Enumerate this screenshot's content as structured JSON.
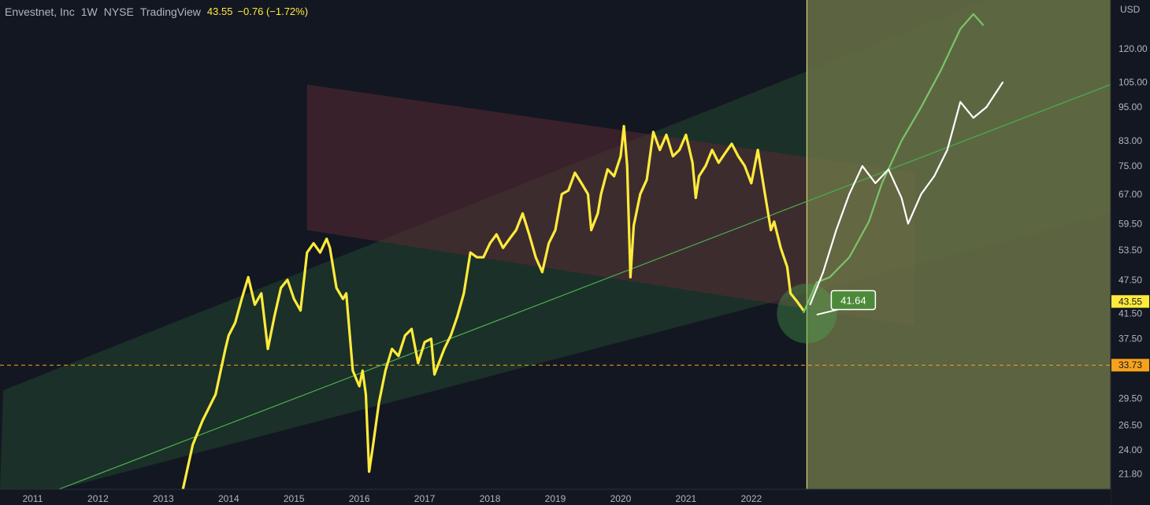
{
  "legend": {
    "symbol": "Envestnet, Inc",
    "interval": "1W",
    "exchange": "NYSE",
    "source": "TradingView",
    "price": "43.55",
    "change": "−0.76 (−1.72%)"
  },
  "colors": {
    "background": "#131722",
    "price_line": "#ffeb3b",
    "projection_green": "#7cc36a",
    "projection_white": "#ffffff",
    "channel_fill": "#1f3a2b",
    "trend_line": "#4caf50",
    "red_zone": "#5a2a33",
    "future_zone": "#6b7447",
    "support_line": "#f7a21b",
    "axis_text": "#b2b5be"
  },
  "chart_data": {
    "type": "line",
    "y_scale": "log",
    "currency": "USD",
    "ylim": [
      20.5,
      146
    ],
    "xlim": [
      "2010-07",
      "2027-07"
    ],
    "x_ticks": [
      "2011",
      "2012",
      "2013",
      "2014",
      "2015",
      "2016",
      "2017",
      "2018",
      "2019",
      "2020",
      "2021",
      "2022"
    ],
    "y_ticks": [
      "120.00",
      "105.00",
      "95.00",
      "83.00",
      "75.00",
      "67.00",
      "59.50",
      "53.50",
      "47.50",
      "41.50",
      "37.50",
      "29.50",
      "26.50",
      "24.00",
      "21.80"
    ],
    "current_price": "43.55",
    "support_level": "33.73",
    "callout": "41.64",
    "series": [
      {
        "values": [
          [
            2013.3,
            20.5
          ],
          [
            2013.45,
            24.5
          ],
          [
            2013.6,
            27
          ],
          [
            2013.8,
            30
          ],
          [
            2013.95,
            36
          ],
          [
            2014.0,
            38
          ],
          [
            2014.1,
            40
          ],
          [
            2014.2,
            44
          ],
          [
            2014.3,
            48
          ],
          [
            2014.4,
            43
          ],
          [
            2014.5,
            45
          ],
          [
            2014.6,
            36
          ],
          [
            2014.7,
            41
          ],
          [
            2014.8,
            46
          ],
          [
            2014.9,
            47.5
          ],
          [
            2015.0,
            44
          ],
          [
            2015.1,
            42
          ],
          [
            2015.2,
            53
          ],
          [
            2015.3,
            55
          ],
          [
            2015.4,
            53
          ],
          [
            2015.5,
            56
          ],
          [
            2015.55,
            54
          ],
          [
            2015.65,
            46
          ],
          [
            2015.75,
            44
          ],
          [
            2015.8,
            45
          ],
          [
            2015.9,
            33
          ],
          [
            2016.0,
            31
          ],
          [
            2016.05,
            33
          ],
          [
            2016.1,
            30
          ],
          [
            2016.15,
            22
          ],
          [
            2016.2,
            24
          ],
          [
            2016.3,
            29
          ],
          [
            2016.4,
            33
          ],
          [
            2016.5,
            36
          ],
          [
            2016.6,
            35
          ],
          [
            2016.7,
            38
          ],
          [
            2016.8,
            39
          ],
          [
            2016.9,
            34
          ],
          [
            2017.0,
            37
          ],
          [
            2017.1,
            37.5
          ],
          [
            2017.15,
            32.5
          ],
          [
            2017.3,
            36
          ],
          [
            2017.4,
            38
          ],
          [
            2017.5,
            41
          ],
          [
            2017.6,
            45
          ],
          [
            2017.7,
            53
          ],
          [
            2017.8,
            52
          ],
          [
            2017.9,
            52
          ],
          [
            2018.0,
            55
          ],
          [
            2018.1,
            57
          ],
          [
            2018.2,
            54
          ],
          [
            2018.3,
            56
          ],
          [
            2018.4,
            58
          ],
          [
            2018.5,
            62
          ],
          [
            2018.6,
            57
          ],
          [
            2018.7,
            52
          ],
          [
            2018.8,
            49
          ],
          [
            2018.9,
            55
          ],
          [
            2019.0,
            58
          ],
          [
            2019.1,
            67
          ],
          [
            2019.2,
            68
          ],
          [
            2019.3,
            73
          ],
          [
            2019.4,
            70
          ],
          [
            2019.5,
            67
          ],
          [
            2019.55,
            58
          ],
          [
            2019.65,
            62
          ],
          [
            2019.7,
            67
          ],
          [
            2019.8,
            74
          ],
          [
            2019.9,
            72
          ],
          [
            2020.0,
            78
          ],
          [
            2020.05,
            88
          ],
          [
            2020.1,
            75
          ],
          [
            2020.15,
            48
          ],
          [
            2020.2,
            59
          ],
          [
            2020.3,
            67
          ],
          [
            2020.4,
            71
          ],
          [
            2020.5,
            86
          ],
          [
            2020.6,
            80
          ],
          [
            2020.7,
            85
          ],
          [
            2020.8,
            78
          ],
          [
            2020.9,
            80
          ],
          [
            2021.0,
            85
          ],
          [
            2021.1,
            76
          ],
          [
            2021.15,
            66
          ],
          [
            2021.2,
            72
          ],
          [
            2021.3,
            75
          ],
          [
            2021.4,
            80
          ],
          [
            2021.5,
            76
          ],
          [
            2021.6,
            79
          ],
          [
            2021.7,
            82
          ],
          [
            2021.8,
            78
          ],
          [
            2021.9,
            75
          ],
          [
            2022.0,
            70
          ],
          [
            2022.1,
            80
          ],
          [
            2022.2,
            68
          ],
          [
            2022.3,
            58
          ],
          [
            2022.35,
            60
          ],
          [
            2022.45,
            54
          ],
          [
            2022.55,
            50
          ],
          [
            2022.6,
            45
          ],
          [
            2022.7,
            43.55
          ],
          [
            2022.8,
            42
          ]
        ]
      },
      {
        "values": [
          [
            2022.8,
            41.64
          ],
          [
            2023.0,
            47
          ],
          [
            2023.2,
            48
          ],
          [
            2023.5,
            52
          ],
          [
            2023.8,
            60
          ],
          [
            2024.0,
            70
          ],
          [
            2024.3,
            83
          ],
          [
            2024.6,
            95
          ],
          [
            2024.9,
            110
          ],
          [
            2025.2,
            130
          ],
          [
            2025.4,
            138
          ],
          [
            2025.55,
            132
          ]
        ]
      },
      {
        "values": [
          [
            2022.9,
            43
          ],
          [
            2023.1,
            49
          ],
          [
            2023.3,
            58
          ],
          [
            2023.5,
            67
          ],
          [
            2023.7,
            75
          ],
          [
            2023.9,
            70
          ],
          [
            2024.1,
            74
          ],
          [
            2024.3,
            66
          ],
          [
            2024.4,
            59.5
          ],
          [
            2024.6,
            67
          ],
          [
            2024.8,
            72
          ],
          [
            2025.0,
            80
          ],
          [
            2025.2,
            97
          ],
          [
            2025.4,
            91
          ],
          [
            2025.6,
            95
          ],
          [
            2025.85,
            105
          ]
        ]
      }
    ]
  }
}
